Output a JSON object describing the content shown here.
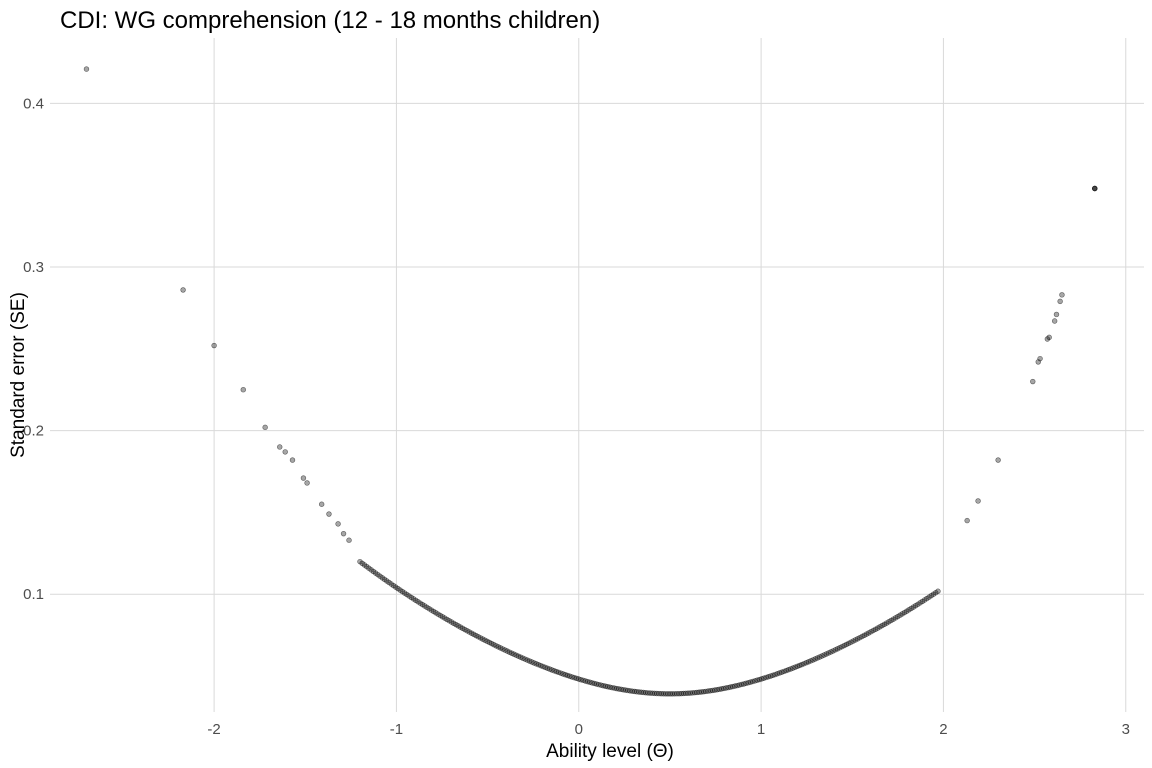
{
  "chart_data": {
    "type": "scatter",
    "title": "CDI: WG comprehension (12 - 18 months children)",
    "xlabel": "Ability level (Θ)",
    "ylabel": "Standard error (SE)",
    "xlim": [
      -2.9,
      3.1
    ],
    "ylim": [
      0.028,
      0.44
    ],
    "x_ticks": [
      -2,
      -1,
      0,
      1,
      2,
      3
    ],
    "x_tick_labels": [
      "-2",
      "-1",
      "0",
      "1",
      "2",
      "3"
    ],
    "y_ticks": [
      0.1,
      0.2,
      0.3,
      0.4
    ],
    "y_tick_labels": [
      "0.1",
      "0.2",
      "0.3",
      "0.4"
    ],
    "grid": true,
    "point_color": "#000000",
    "point_opacity": 0.35,
    "curve_model": {
      "description": "dense cluster of points along SE curve",
      "x_range": [
        -1.2,
        1.97
      ],
      "n_points": 260
    },
    "points": [
      [
        -2.7,
        0.421
      ],
      [
        -2.17,
        0.286
      ],
      [
        -2.0,
        0.252
      ],
      [
        -1.84,
        0.225
      ],
      [
        -1.72,
        0.202
      ],
      [
        -1.64,
        0.19
      ],
      [
        -1.61,
        0.187
      ],
      [
        -1.57,
        0.182
      ],
      [
        -1.51,
        0.171
      ],
      [
        -1.49,
        0.168
      ],
      [
        -1.41,
        0.155
      ],
      [
        -1.37,
        0.149
      ],
      [
        -1.32,
        0.143
      ],
      [
        -1.29,
        0.137
      ],
      [
        -1.26,
        0.133
      ],
      [
        2.13,
        0.145
      ],
      [
        2.19,
        0.157
      ],
      [
        2.3,
        0.182
      ],
      [
        2.49,
        0.23
      ],
      [
        2.52,
        0.242
      ],
      [
        2.53,
        0.244
      ],
      [
        2.57,
        0.256
      ],
      [
        2.58,
        0.257
      ],
      [
        2.61,
        0.267
      ],
      [
        2.62,
        0.271
      ],
      [
        2.64,
        0.279
      ],
      [
        2.65,
        0.283
      ],
      [
        2.83,
        0.348
      ],
      [
        2.83,
        0.348
      ],
      [
        2.83,
        0.348
      ]
    ]
  }
}
